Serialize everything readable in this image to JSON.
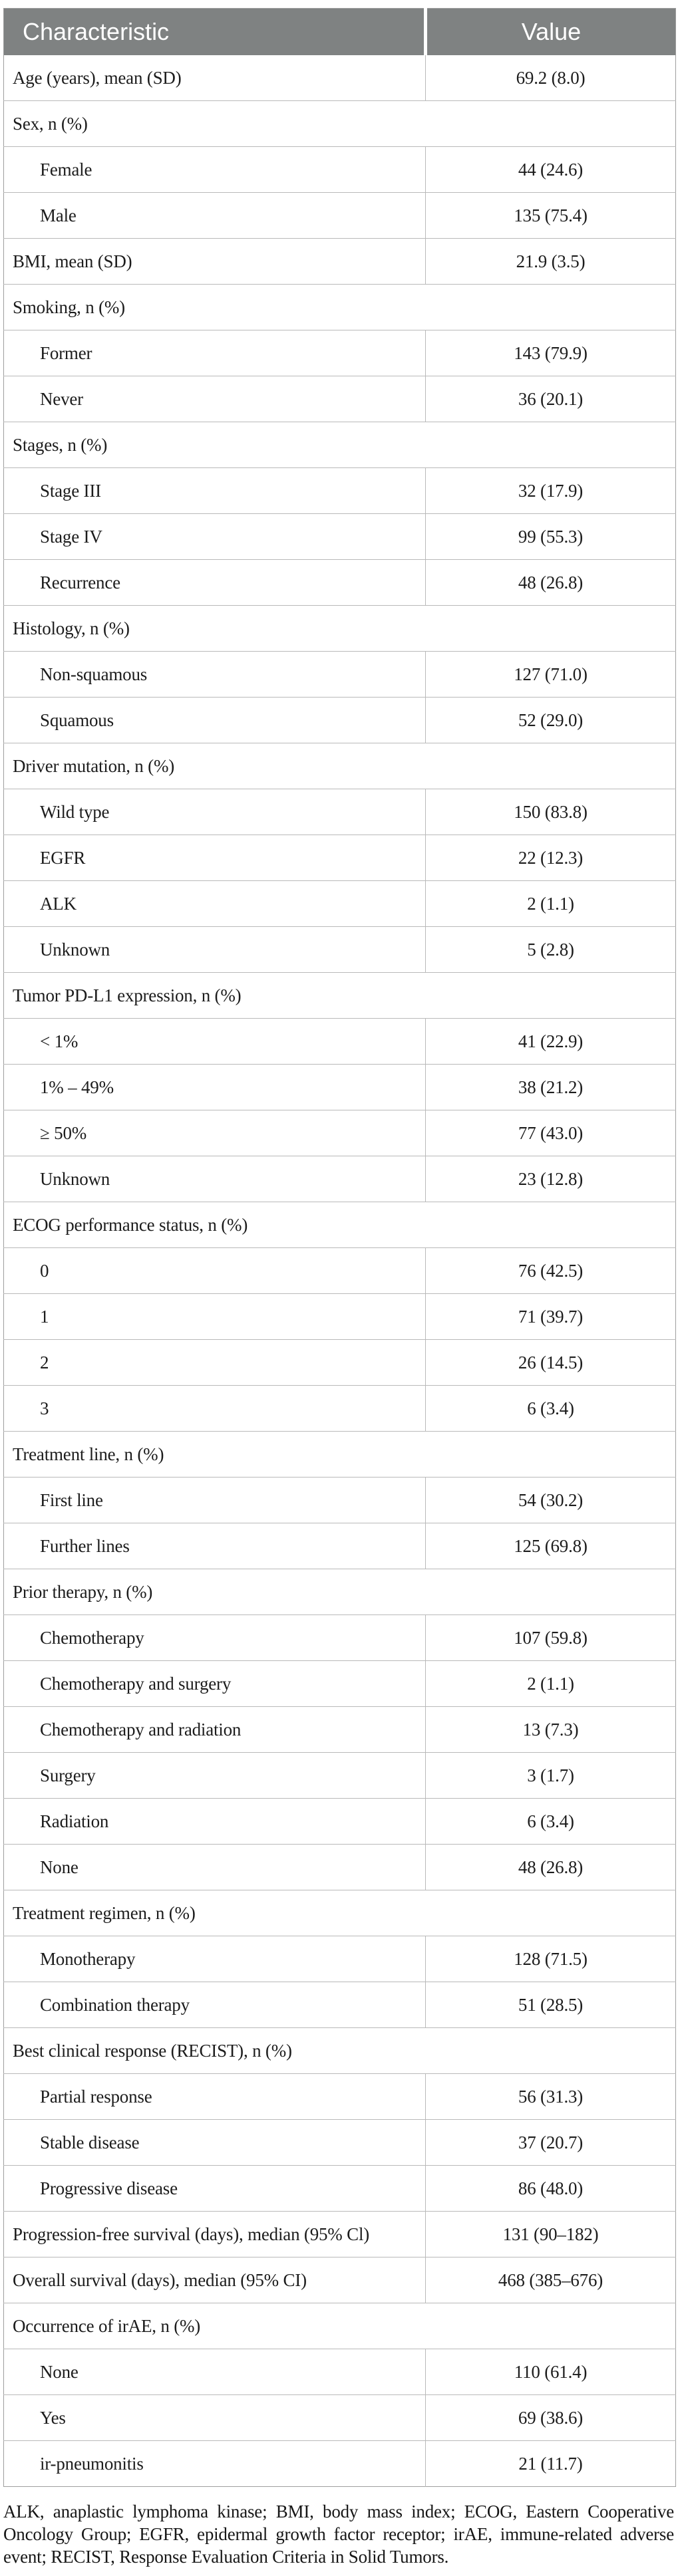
{
  "table": {
    "columns": [
      "Characteristic",
      "Value"
    ],
    "rows": [
      {
        "type": "data",
        "label": "Age (years), mean (SD)",
        "value": "69.2 (8.0)"
      },
      {
        "type": "category",
        "label": "Sex, n (%)"
      },
      {
        "type": "sub",
        "label": "Female",
        "value": "44 (24.6)"
      },
      {
        "type": "sub",
        "label": "Male",
        "value": "135 (75.4)"
      },
      {
        "type": "data",
        "label": "BMI, mean (SD)",
        "value": "21.9 (3.5)"
      },
      {
        "type": "category",
        "label": "Smoking, n (%)"
      },
      {
        "type": "sub",
        "label": "Former",
        "value": "143 (79.9)"
      },
      {
        "type": "sub",
        "label": "Never",
        "value": "36 (20.1)"
      },
      {
        "type": "category",
        "label": "Stages, n (%)"
      },
      {
        "type": "sub",
        "label": "Stage III",
        "value": "32 (17.9)"
      },
      {
        "type": "sub",
        "label": "Stage IV",
        "value": "99 (55.3)"
      },
      {
        "type": "sub",
        "label": "Recurrence",
        "value": "48 (26.8)"
      },
      {
        "type": "category",
        "label": "Histology, n (%)"
      },
      {
        "type": "sub",
        "label": "Non-squamous",
        "value": "127 (71.0)"
      },
      {
        "type": "sub",
        "label": "Squamous",
        "value": "52 (29.0)"
      },
      {
        "type": "category",
        "label": "Driver mutation, n (%)"
      },
      {
        "type": "sub",
        "label": "Wild type",
        "value": "150 (83.8)"
      },
      {
        "type": "sub",
        "label": "EGFR",
        "value": "22 (12.3)"
      },
      {
        "type": "sub",
        "label": "ALK",
        "value": "2 (1.1)"
      },
      {
        "type": "sub",
        "label": "Unknown",
        "value": "5 (2.8)"
      },
      {
        "type": "category",
        "label": "Tumor PD-L1 expression, n (%)"
      },
      {
        "type": "sub",
        "label": "< 1%",
        "value": "41 (22.9)"
      },
      {
        "type": "sub",
        "label": "1% – 49%",
        "value": "38 (21.2)"
      },
      {
        "type": "sub",
        "label": "≥ 50%",
        "value": "77 (43.0)"
      },
      {
        "type": "sub",
        "label": "Unknown",
        "value": "23 (12.8)"
      },
      {
        "type": "category",
        "label": "ECOG performance status, n (%)"
      },
      {
        "type": "sub",
        "label": "0",
        "value": "76 (42.5)"
      },
      {
        "type": "sub",
        "label": "1",
        "value": "71 (39.7)"
      },
      {
        "type": "sub",
        "label": "2",
        "value": "26 (14.5)"
      },
      {
        "type": "sub",
        "label": "3",
        "value": "6 (3.4)"
      },
      {
        "type": "category",
        "label": "Treatment line, n (%)"
      },
      {
        "type": "sub",
        "label": "First line",
        "value": "54 (30.2)"
      },
      {
        "type": "sub",
        "label": "Further lines",
        "value": "125 (69.8)"
      },
      {
        "type": "category",
        "label": "Prior therapy, n (%)"
      },
      {
        "type": "sub",
        "label": "Chemotherapy",
        "value": "107 (59.8)"
      },
      {
        "type": "sub",
        "label": "Chemotherapy and surgery",
        "value": "2 (1.1)"
      },
      {
        "type": "sub",
        "label": "Chemotherapy and radiation",
        "value": "13 (7.3)"
      },
      {
        "type": "sub",
        "label": "Surgery",
        "value": "3 (1.7)"
      },
      {
        "type": "sub",
        "label": "Radiation",
        "value": "6 (3.4)"
      },
      {
        "type": "sub",
        "label": "None",
        "value": "48 (26.8)"
      },
      {
        "type": "category",
        "label": "Treatment regimen, n (%)"
      },
      {
        "type": "sub",
        "label": "Monotherapy",
        "value": "128 (71.5)"
      },
      {
        "type": "sub",
        "label": "Combination therapy",
        "value": "51 (28.5)"
      },
      {
        "type": "category",
        "label": "Best clinical response (RECIST), n (%)"
      },
      {
        "type": "sub",
        "label": "Partial response",
        "value": "56 (31.3)"
      },
      {
        "type": "sub",
        "label": "Stable disease",
        "value": "37 (20.7)"
      },
      {
        "type": "sub",
        "label": "Progressive disease",
        "value": "86 (48.0)"
      },
      {
        "type": "data",
        "label": "Progression-free survival (days), median (95% Cl)",
        "value": "131 (90–182)"
      },
      {
        "type": "data",
        "label": "Overall survival (days), median (95% CI)",
        "value": "468 (385–676)"
      },
      {
        "type": "category",
        "label": "Occurrence of irAE, n (%)"
      },
      {
        "type": "sub",
        "label": "None",
        "value": "110 (61.4)"
      },
      {
        "type": "sub",
        "label": "Yes",
        "value": "69 (38.6)"
      },
      {
        "type": "sub",
        "label": "ir-pneumonitis",
        "value": "21 (11.7)"
      }
    ],
    "footnote": "ALK, anaplastic lymphoma kinase; BMI, body mass index; ECOG, Eastern Cooperative Oncology Group; EGFR, epidermal growth factor receptor; irAE, immune-related adverse event; RECIST, Response Evaluation Criteria in Solid Tumors.",
    "colors": {
      "header_bg": "#7f8282",
      "header_text": "#ffffff",
      "border": "#b9b9b9",
      "text": "#1c1c1c"
    }
  }
}
